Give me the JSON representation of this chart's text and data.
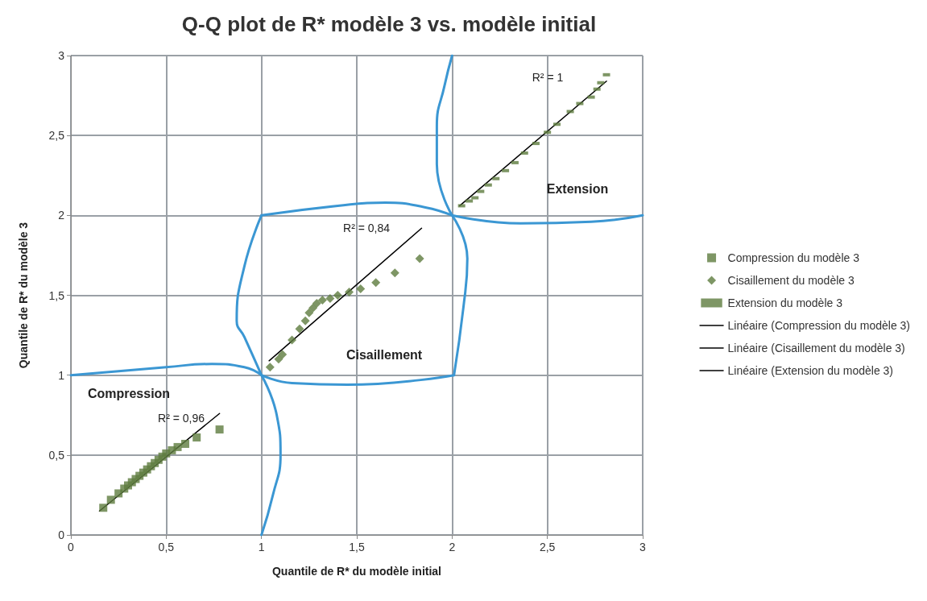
{
  "chart_data": {
    "type": "scatter",
    "title": "Q-Q plot de R* modèle 3 vs. modèle initial",
    "xlabel": "Quantile de R* du modèle initial",
    "ylabel": "Quantile de R* du modèle 3",
    "xlim": [
      0,
      3
    ],
    "ylim": [
      0,
      3
    ],
    "xticks": [
      0,
      {
        "value": 0.5,
        "label": "0,5"
      },
      1,
      {
        "value": 1.5,
        "label": "1,5"
      },
      2,
      {
        "value": 2.5,
        "label": "2,5"
      },
      3
    ],
    "yticks": [
      0,
      {
        "value": 0.5,
        "label": "0,5"
      },
      1,
      {
        "value": 1.5,
        "label": "1,5"
      },
      2,
      {
        "value": 2.5,
        "label": "2,5"
      },
      3
    ],
    "grid": true,
    "legend": "right",
    "series": [
      {
        "name": "Compression du modèle 3",
        "marker": "square",
        "color": "#5e7c3e",
        "x": [
          0.17,
          0.21,
          0.25,
          0.28,
          0.3,
          0.32,
          0.34,
          0.36,
          0.38,
          0.4,
          0.42,
          0.44,
          0.46,
          0.48,
          0.5,
          0.53,
          0.56,
          0.6,
          0.66,
          0.78
        ],
        "values": [
          0.17,
          0.22,
          0.26,
          0.29,
          0.31,
          0.33,
          0.35,
          0.37,
          0.39,
          0.41,
          0.43,
          0.45,
          0.47,
          0.49,
          0.51,
          0.53,
          0.55,
          0.57,
          0.61,
          0.66
        ]
      },
      {
        "name": "Cisaillement du modèle 3",
        "marker": "diamond",
        "color": "#5e7c3e",
        "x": [
          1.045,
          1.09,
          1.11,
          1.16,
          1.2,
          1.23,
          1.25,
          1.27,
          1.29,
          1.32,
          1.36,
          1.4,
          1.46,
          1.52,
          1.6,
          1.7,
          1.83
        ],
        "values": [
          1.05,
          1.1,
          1.13,
          1.22,
          1.29,
          1.34,
          1.39,
          1.42,
          1.45,
          1.47,
          1.48,
          1.5,
          1.52,
          1.54,
          1.58,
          1.64,
          1.73
        ]
      },
      {
        "name": "Extension du modèle 3",
        "marker": "square",
        "color": "#5e7c3e",
        "x": [
          2.05,
          2.09,
          2.12,
          2.15,
          2.19,
          2.23,
          2.28,
          2.33,
          2.38,
          2.44,
          2.5,
          2.55,
          2.62,
          2.67,
          2.73,
          2.76,
          2.78,
          2.81
        ],
        "values": [
          2.06,
          2.09,
          2.11,
          2.15,
          2.19,
          2.23,
          2.28,
          2.33,
          2.39,
          2.45,
          2.52,
          2.57,
          2.65,
          2.7,
          2.74,
          2.79,
          2.83,
          2.88
        ]
      },
      {
        "name": "Linéaire (Compression du modèle 3)",
        "type": "line",
        "marker": "none",
        "color": "#000000",
        "x": [
          0.15,
          0.78
        ],
        "values": [
          0.15,
          0.76
        ]
      },
      {
        "name": "Linéaire (Cisaillement du modèle 3)",
        "type": "line",
        "marker": "none",
        "color": "#000000",
        "x": [
          1.04,
          1.84
        ],
        "values": [
          1.09,
          1.92
        ]
      },
      {
        "name": "Linéaire (Extension du modèle 3)",
        "type": "line",
        "marker": "none",
        "color": "#000000",
        "x": [
          2.04,
          2.81
        ],
        "values": [
          2.06,
          2.84
        ]
      },
      {
        "type": "line",
        "marker": "none",
        "color": "#3b97d3",
        "x": [
          0,
          0.5,
          0.74,
          0.91,
          1
        ],
        "values": [
          1,
          1.05,
          1.07,
          1.05,
          1
        ]
      },
      {
        "type": "line",
        "marker": "none",
        "color": "#3b97d3",
        "x": [
          1,
          1.06,
          1.1,
          1.08,
          1
        ],
        "values": [
          0,
          0.25,
          0.5,
          0.75,
          1
        ]
      },
      {
        "type": "line",
        "marker": "none",
        "color": "#3b97d3",
        "x": [
          1,
          1.16,
          1.45,
          2.01
        ],
        "values": [
          1,
          0.95,
          0.94,
          1
        ]
      },
      {
        "type": "line",
        "marker": "none",
        "color": "#3b97d3",
        "x": [
          2.01,
          2.06,
          2.08,
          2
        ],
        "values": [
          1,
          1.43,
          1.73,
          2
        ]
      },
      {
        "type": "line",
        "marker": "none",
        "color": "#3b97d3",
        "x": [
          1,
          0.91,
          0.87,
          0.91,
          1
        ],
        "values": [
          2,
          1.68,
          1.34,
          1.24,
          1
        ]
      },
      {
        "type": "line",
        "marker": "none",
        "color": "#3b97d3",
        "x": [
          1,
          1.4,
          1.65,
          1.86,
          2
        ],
        "values": [
          2,
          2.06,
          2.08,
          2.05,
          2
        ]
      },
      {
        "type": "line",
        "marker": "none",
        "color": "#3b97d3",
        "x": [
          2,
          1.92,
          1.92,
          1.96,
          2
        ],
        "values": [
          2,
          2.32,
          2.56,
          2.81,
          3
        ]
      },
      {
        "type": "line",
        "marker": "none",
        "color": "#3b97d3",
        "x": [
          2,
          2.36,
          2.73,
          3
        ],
        "values": [
          2,
          1.95,
          1.96,
          2
        ]
      }
    ],
    "annotations": [
      "R² = 0,96",
      "R² = 0,84",
      "R² = 1",
      "Compression",
      "Cisaillement",
      "Extension"
    ]
  }
}
